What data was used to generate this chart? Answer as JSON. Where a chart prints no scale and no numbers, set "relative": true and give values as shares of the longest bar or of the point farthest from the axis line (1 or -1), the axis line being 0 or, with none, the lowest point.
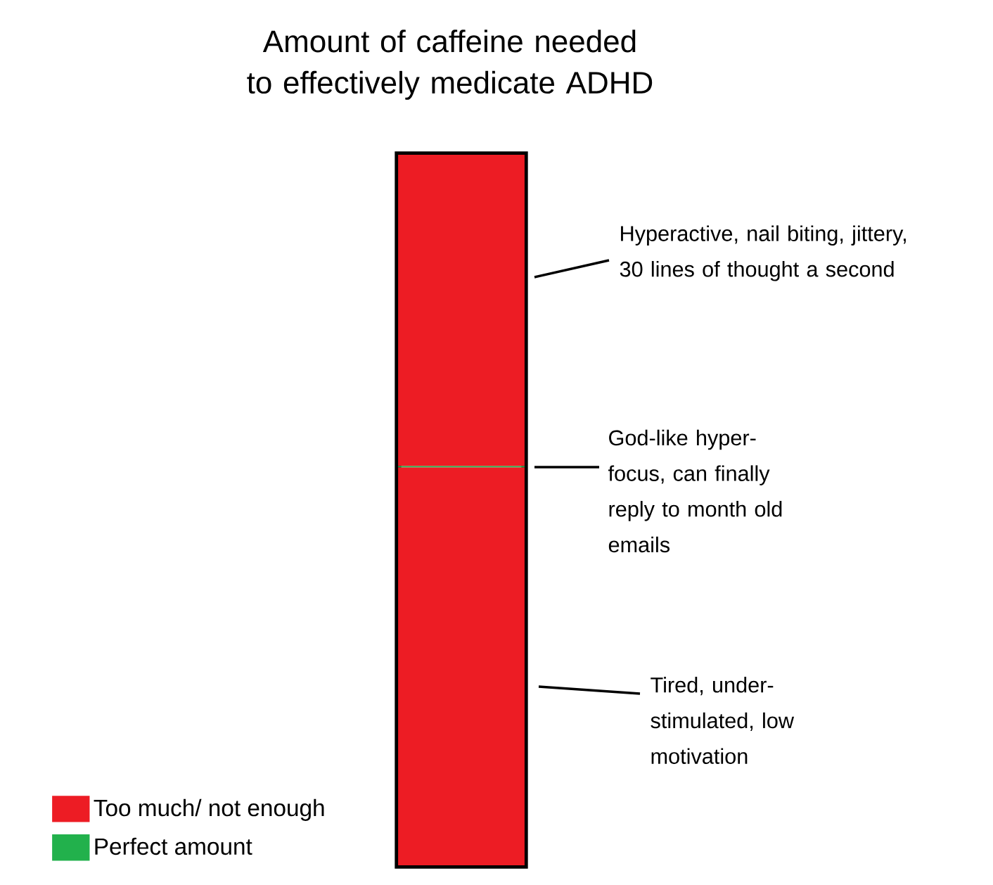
{
  "chart_data": {
    "type": "bar",
    "title": "Amount of caffeine needed to effectively medicate ADHD",
    "relative": true,
    "stacked": true,
    "legend": "bottom left",
    "categories": [
      null
    ],
    "series": [
      {
        "name": "Too much/ not enough",
        "color": "#ed1c24",
        "values": [
          0.56
        ]
      },
      {
        "name": "Perfect amount",
        "color": "#22b14c",
        "values": [
          0.002
        ]
      },
      {
        "color": "#ed1c24",
        "values": [
          0.438
        ]
      }
    ],
    "annotations": [
      "Hyperactive, nail biting, jittery, 30 lines of thought a second",
      "God-like hyper-focus, can finally reply to month old emails",
      "Tired, under-stimulated, low motivation"
    ]
  }
}
